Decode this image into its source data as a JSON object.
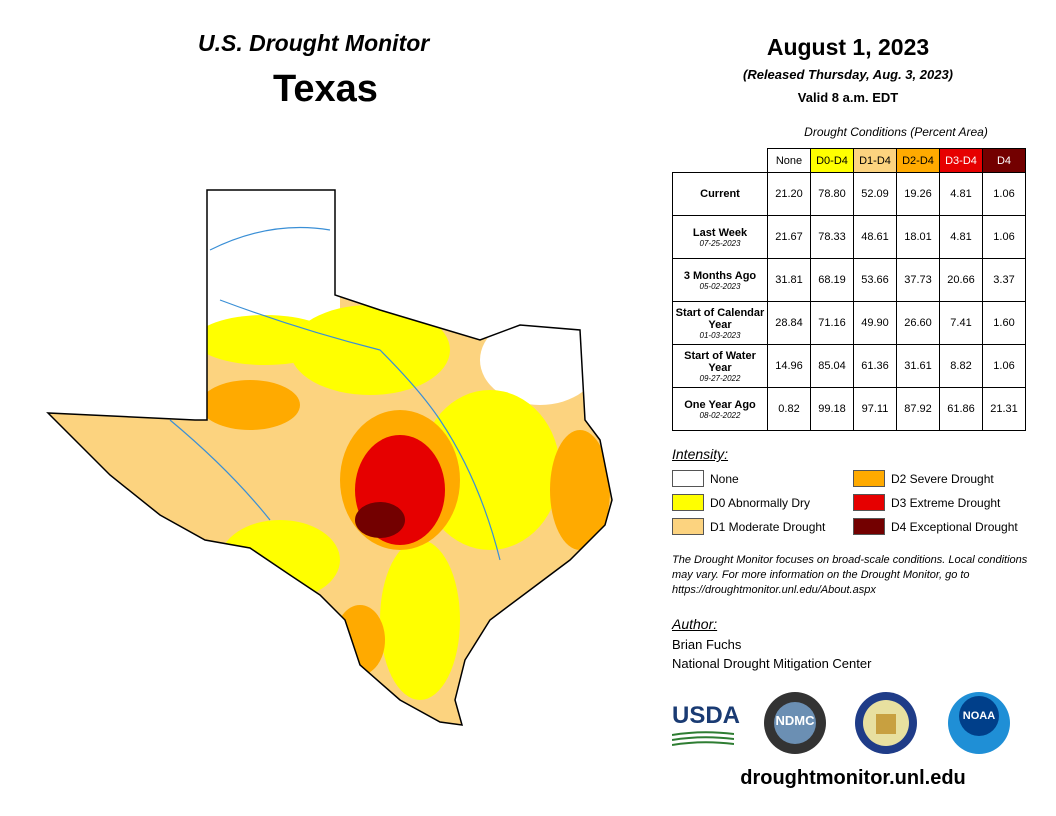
{
  "header": {
    "program": "U.S. Drought Monitor",
    "state": "Texas"
  },
  "date": {
    "title": "August 1, 2023",
    "released": "(Released Thursday, Aug. 3, 2023)",
    "valid": "Valid 8 a.m. EDT"
  },
  "table": {
    "caption": "Drought Conditions (Percent Area)",
    "columns": [
      {
        "label": "None",
        "color": "#ffffff"
      },
      {
        "label": "D0-D4",
        "color": "#ffff00"
      },
      {
        "label": "D1-D4",
        "color": "#fcd37f"
      },
      {
        "label": "D2-D4",
        "color": "#ffaa00"
      },
      {
        "label": "D3-D4",
        "color": "#e60000"
      },
      {
        "label": "D4",
        "color": "#730000"
      }
    ],
    "rows": [
      {
        "label": "Current",
        "values": [
          "21.20",
          "78.80",
          "52.09",
          "19.26",
          "4.81",
          "1.06"
        ]
      },
      {
        "label": "Last Week",
        "date": "07-25-2023",
        "values": [
          "21.67",
          "78.33",
          "48.61",
          "18.01",
          "4.81",
          "1.06"
        ]
      },
      {
        "label": "3 Months Ago",
        "date": "05-02-2023",
        "values": [
          "31.81",
          "68.19",
          "53.66",
          "37.73",
          "20.66",
          "3.37"
        ]
      },
      {
        "label": "Start of Calendar Year",
        "date": "01-03-2023",
        "values": [
          "28.84",
          "71.16",
          "49.90",
          "26.60",
          "7.41",
          "1.60"
        ]
      },
      {
        "label": "Start of Water Year",
        "date": "09-27-2022",
        "values": [
          "14.96",
          "85.04",
          "61.36",
          "31.61",
          "8.82",
          "1.06"
        ]
      },
      {
        "label": "One Year Ago",
        "date": "08-02-2022",
        "values": [
          "0.82",
          "99.18",
          "97.11",
          "87.92",
          "61.86",
          "21.31"
        ]
      }
    ]
  },
  "legend": {
    "title": "Intensity:",
    "items": [
      {
        "label": "None",
        "color": "#ffffff"
      },
      {
        "label": "D0 Abnormally Dry",
        "color": "#ffff00"
      },
      {
        "label": "D1 Moderate Drought",
        "color": "#fcd37f"
      },
      {
        "label": "D2 Severe Drought",
        "color": "#ffaa00"
      },
      {
        "label": "D3 Extreme Drought",
        "color": "#e60000"
      },
      {
        "label": "D4 Exceptional Drought",
        "color": "#730000"
      }
    ]
  },
  "note": "The Drought Monitor focuses on broad-scale conditions. Local conditions may vary. For more information on the Drought Monitor, go to https://droughtmonitor.unl.edu/About.aspx",
  "author": {
    "title": "Author:",
    "name": "Brian Fuchs",
    "org": "National Drought Mitigation Center"
  },
  "logos": {
    "usda": "USDA",
    "ndmc": "NDMC",
    "noaa": "NOAA"
  },
  "url": "droughtmonitor.unl.edu"
}
